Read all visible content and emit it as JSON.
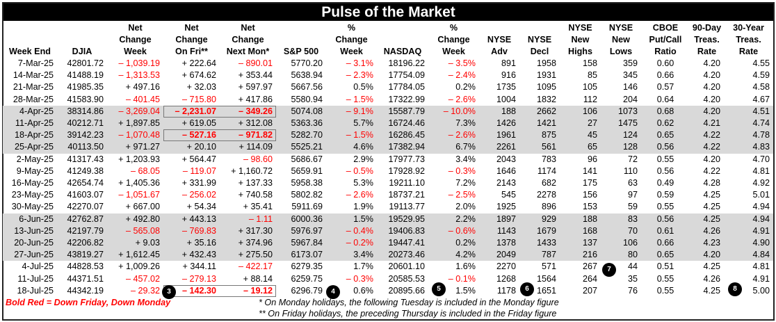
{
  "title": "Pulse of the Market",
  "headers": [
    [
      "",
      "",
      "Week End"
    ],
    [
      "",
      "",
      "DJIA"
    ],
    [
      "Net",
      "Change",
      "Week"
    ],
    [
      "Net",
      "Change",
      "On Fri**"
    ],
    [
      "Net",
      "Change",
      "Next Mon*"
    ],
    [
      "",
      "",
      "S&P 500"
    ],
    [
      "%",
      "Change",
      "Week"
    ],
    [
      "",
      "",
      "NASDAQ"
    ],
    [
      "%",
      "Change",
      "Week"
    ],
    [
      "",
      "NYSE",
      "Adv"
    ],
    [
      "",
      "NYSE",
      "Decl"
    ],
    [
      "NYSE",
      "New",
      "Highs"
    ],
    [
      "NYSE",
      "New",
      "Lows"
    ],
    [
      "CBOE",
      "Put/Call",
      "Ratio"
    ],
    [
      "90-Day",
      "Treas.",
      "Rate"
    ],
    [
      "30-Year",
      "Treas.",
      "Rate"
    ]
  ],
  "rows": [
    {
      "cells": [
        "7-Mar-25",
        "42801.72",
        "– 1,039.19",
        "+ 222.64",
        "– 890.01",
        "5770.20",
        "– 3.1%",
        "18196.22",
        "– 3.5%",
        "891",
        "1958",
        "158",
        "359",
        "0.60",
        "4.20",
        "4.55"
      ]
    },
    {
      "cells": [
        "14-Mar-25",
        "41488.19",
        "– 1,313.53",
        "+ 674.62",
        "+ 353.44",
        "5638.94",
        "– 2.3%",
        "17754.09",
        "– 2.4%",
        "916",
        "1931",
        "85",
        "345",
        "0.66",
        "4.20",
        "4.59"
      ]
    },
    {
      "cells": [
        "21-Mar-25",
        "41985.35",
        "+ 497.16",
        "+ 32.03",
        "+ 597.97",
        "5667.56",
        "0.5%",
        "17784.05",
        "0.2%",
        "1735",
        "1095",
        "105",
        "146",
        "0.57",
        "4.20",
        "4.58"
      ]
    },
    {
      "cells": [
        "28-Mar-25",
        "41583.90",
        "– 401.45",
        "– 715.80",
        "+ 417.86",
        "5580.94",
        "– 1.5%",
        "17322.99",
        "– 2.6%",
        "1004",
        "1832",
        "112",
        "204",
        "0.64",
        "4.20",
        "4.67"
      ]
    },
    {
      "gray": true,
      "bold_box": true,
      "cells": [
        "4-Apr-25",
        "38314.86",
        "– 3,269.04",
        "– 2,231.07",
        "– 349.26",
        "5074.08",
        "– 9.1%",
        "15587.79",
        "– 10.0%",
        "188",
        "2662",
        "106",
        "1073",
        "0.68",
        "4.20",
        "4.51"
      ]
    },
    {
      "gray": true,
      "cells": [
        "11-Apr-25",
        "40212.71",
        "+ 1,897.85",
        "+ 619.05",
        "+ 312.08",
        "5363.36",
        "5.7%",
        "16724.46",
        "7.3%",
        "1426",
        "1421",
        "27",
        "1475",
        "0.62",
        "4.21",
        "4.74"
      ]
    },
    {
      "gray": true,
      "bold_box": true,
      "cells": [
        "18-Apr-25",
        "39142.23",
        "– 1,070.48",
        "– 527.16",
        "– 971.82",
        "5282.70",
        "– 1.5%",
        "16286.45",
        "– 2.6%",
        "1961",
        "875",
        "45",
        "124",
        "0.65",
        "4.22",
        "4.78"
      ]
    },
    {
      "gray": true,
      "cells": [
        "25-Apr-25",
        "40113.50",
        "+ 971.27",
        "+ 20.10",
        "+ 114.09",
        "5525.21",
        "4.6%",
        "17382.94",
        "6.7%",
        "2261",
        "561",
        "65",
        "128",
        "0.56",
        "4.22",
        "4.83"
      ]
    },
    {
      "cells": [
        "2-May-25",
        "41317.43",
        "+ 1,203.93",
        "+ 564.47",
        "– 98.60",
        "5686.67",
        "2.9%",
        "17977.73",
        "3.4%",
        "2043",
        "783",
        "96",
        "72",
        "0.55",
        "4.20",
        "4.70"
      ]
    },
    {
      "cells": [
        "9-May-25",
        "41249.38",
        "– 68.05",
        "– 119.07",
        "+ 1,160.72",
        "5659.91",
        "– 0.5%",
        "17928.92",
        "– 0.3%",
        "1646",
        "1174",
        "141",
        "110",
        "0.56",
        "4.22",
        "4.81"
      ]
    },
    {
      "cells": [
        "16-May-25",
        "42654.74",
        "+ 1,405.36",
        "+ 331.99",
        "+ 137.33",
        "5958.38",
        "5.3%",
        "19211.10",
        "7.2%",
        "2143",
        "682",
        "175",
        "63",
        "0.49",
        "4.28",
        "4.92"
      ]
    },
    {
      "cells": [
        "23-May-25",
        "41603.07",
        "– 1,051.67",
        "– 256.02",
        "+ 740.58",
        "5802.82",
        "– 2.6%",
        "18737.21",
        "– 2.5%",
        "545",
        "2278",
        "156",
        "97",
        "0.59",
        "4.25",
        "5.01"
      ]
    },
    {
      "cells": [
        "30-May-25",
        "42270.07",
        "+ 667.00",
        "+ 54.34",
        "+ 35.41",
        "5911.69",
        "1.9%",
        "19113.77",
        "2.0%",
        "1925",
        "896",
        "153",
        "59",
        "0.55",
        "4.25",
        "4.94"
      ]
    },
    {
      "gray": true,
      "cells": [
        "6-Jun-25",
        "42762.87",
        "+ 492.80",
        "+ 443.13",
        "– 1.11",
        "6000.36",
        "1.5%",
        "19529.95",
        "2.2%",
        "1897",
        "929",
        "188",
        "83",
        "0.56",
        "4.25",
        "4.94"
      ]
    },
    {
      "gray": true,
      "cells": [
        "13-Jun-25",
        "42197.79",
        "– 565.08",
        "– 769.83",
        "+ 317.30",
        "5976.97",
        "– 0.4%",
        "19406.83",
        "– 0.6%",
        "1143",
        "1679",
        "168",
        "70",
        "0.61",
        "4.26",
        "4.91"
      ]
    },
    {
      "gray": true,
      "cells": [
        "20-Jun-25",
        "42206.82",
        "+ 9.03",
        "+ 35.16",
        "+ 374.96",
        "5967.84",
        "– 0.2%",
        "19447.41",
        "0.2%",
        "1378",
        "1433",
        "137",
        "106",
        "0.66",
        "4.23",
        "4.90"
      ]
    },
    {
      "gray": true,
      "cells": [
        "27-Jun-25",
        "43819.27",
        "+ 1,612.45",
        "+ 432.43",
        "+ 275.50",
        "6173.07",
        "3.4%",
        "20273.46",
        "4.2%",
        "2049",
        "787",
        "216",
        "80",
        "0.65",
        "4.20",
        "4.84"
      ]
    },
    {
      "cells": [
        "4-Jul-25",
        "44828.53",
        "+ 1,009.26",
        "+ 344.11",
        "– 422.17",
        "6279.35",
        "1.7%",
        "20601.10",
        "1.6%",
        "2270",
        "571",
        "267",
        "44",
        "0.51",
        "4.25",
        "4.81"
      ]
    },
    {
      "cells": [
        "11-Jul-25",
        "44371.51",
        "– 457.02",
        "– 279.13",
        "+ 88.14",
        "6259.75",
        "– 0.3%",
        "20585.53",
        "– 0.1%",
        "1268",
        "1564",
        "264",
        "35",
        "0.55",
        "4.26",
        "4.91"
      ]
    },
    {
      "bold_box": true,
      "cells": [
        "18-Jul-25",
        "44342.19",
        "– 29.32",
        "– 142.30",
        "– 19.12",
        "6296.79",
        "0.6%",
        "20895.66",
        "1.5%",
        "1178",
        "1651",
        "207",
        "76",
        "0.55",
        "4.25",
        "5.00"
      ]
    }
  ],
  "legend": "Bold Red = Down Friday, Down Monday",
  "notes": [
    "* On Monday holidays, the following Tuesday is included in the Monday figure",
    "** On Friday holidays, the preceding Thursday is included in the Friday figure"
  ],
  "markers": [
    "3",
    "4",
    "5",
    "6",
    "7",
    "8"
  ],
  "colors": {
    "negative": "#ff0000",
    "band": "#d9d9d9",
    "title_bg": "#000000"
  }
}
